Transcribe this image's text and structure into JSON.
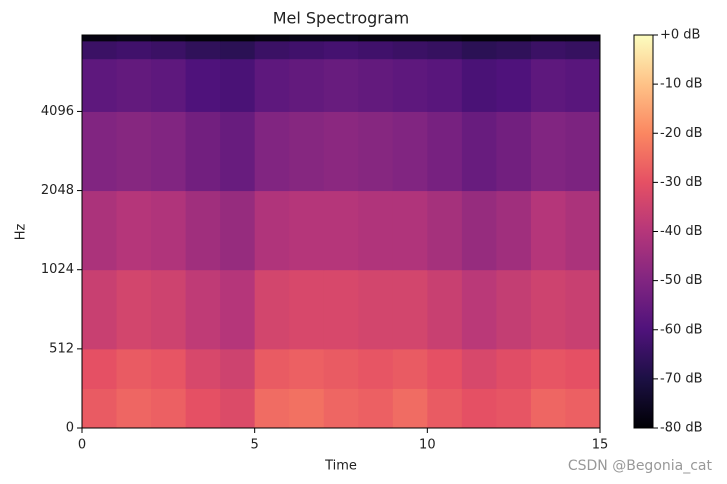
{
  "chart_data": {
    "type": "heatmap",
    "title": "Mel Spectrogram",
    "xlabel": "Time",
    "ylabel": "Hz",
    "watermark": "CSDN @Begonia_cat",
    "x_edges": [
      0,
      1,
      2,
      3,
      4,
      5,
      6,
      7,
      8,
      9,
      10,
      11,
      12,
      13,
      14,
      15
    ],
    "y_edges": [
      0,
      256,
      512,
      1024,
      2048,
      4096,
      6500,
      7600,
      8000
    ],
    "z": [
      [
        -28,
        -26,
        -27,
        -30,
        -32,
        -25,
        -24,
        -26,
        -27,
        -25,
        -28,
        -30,
        -29,
        -26,
        -27
      ],
      [
        -30,
        -28,
        -29,
        -33,
        -35,
        -28,
        -27,
        -28,
        -29,
        -28,
        -30,
        -33,
        -31,
        -29,
        -30
      ],
      [
        -36,
        -34,
        -35,
        -38,
        -40,
        -34,
        -33,
        -33,
        -34,
        -34,
        -36,
        -39,
        -37,
        -35,
        -36
      ],
      [
        -42,
        -40,
        -41,
        -44,
        -46,
        -41,
        -40,
        -40,
        -41,
        -41,
        -43,
        -46,
        -44,
        -40,
        -42
      ],
      [
        -50,
        -49,
        -50,
        -53,
        -55,
        -50,
        -49,
        -48,
        -49,
        -50,
        -52,
        -55,
        -53,
        -50,
        -51
      ],
      [
        -57,
        -56,
        -57,
        -60,
        -61,
        -57,
        -56,
        -55,
        -56,
        -57,
        -58,
        -61,
        -60,
        -57,
        -58
      ],
      [
        -64,
        -63,
        -64,
        -66,
        -67,
        -64,
        -63,
        -62,
        -63,
        -64,
        -65,
        -67,
        -66,
        -64,
        -65
      ],
      [
        -78,
        -77,
        -78,
        -79,
        -79,
        -78,
        -77,
        -77,
        -78,
        -78,
        -78,
        -79,
        -79,
        -78,
        -78
      ]
    ],
    "xlim": [
      0,
      15
    ],
    "xticks": [
      0,
      5,
      10,
      15
    ],
    "ylim": [
      0,
      8000
    ],
    "yscale": "symlog",
    "linthresh": 512,
    "yticks": [
      0,
      512,
      1024,
      2048,
      4096
    ],
    "colormap": "magma",
    "clim": [
      -80,
      0
    ],
    "cticks": [
      {
        "value": 0,
        "label": "+0 dB"
      },
      {
        "value": -10,
        "label": "-10 dB"
      },
      {
        "value": -20,
        "label": "-20 dB"
      },
      {
        "value": -30,
        "label": "-30 dB"
      },
      {
        "value": -40,
        "label": "-40 dB"
      },
      {
        "value": -50,
        "label": "-50 dB"
      },
      {
        "value": -60,
        "label": "-60 dB"
      },
      {
        "value": -70,
        "label": "-70 dB"
      },
      {
        "value": -80,
        "label": "-80 dB"
      }
    ]
  }
}
